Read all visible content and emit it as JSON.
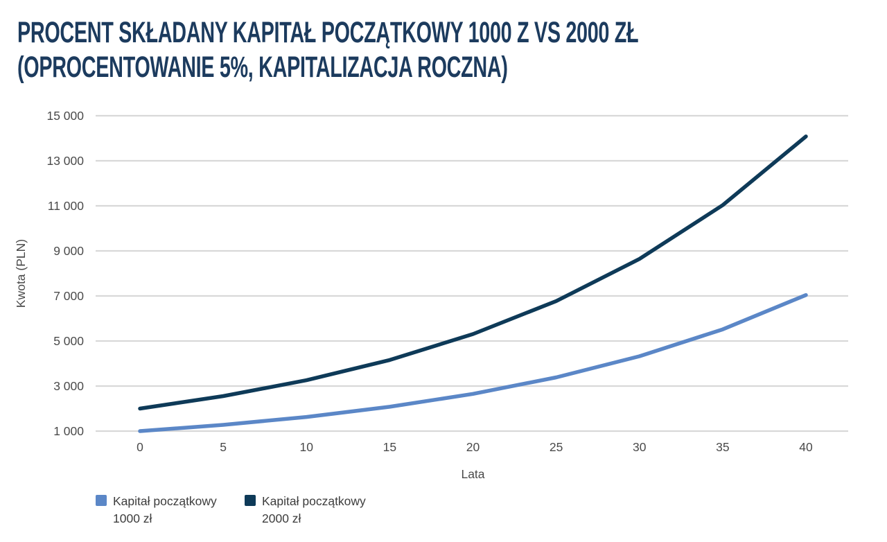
{
  "page": {
    "background": "#ffffff"
  },
  "header": {
    "title_lines": [
      "PROCENT SKŁADANY KAPITAŁ POCZĄTKOWY 1000 Z VS 2000 ZŁ",
      "(OPROCENTOWANIE 5%, KAPITALIZACJA ROCZNA)"
    ],
    "title_color": "#1c3b5e"
  },
  "chart_data": {
    "type": "line",
    "title": "Procent składany kapitał początkowy 1000 z vs 2000 zł (oprocentowanie 5%, kapitalizacja roczna)",
    "x": [
      0,
      5,
      10,
      15,
      20,
      25,
      30,
      35,
      40
    ],
    "xtick_labels": [
      "0",
      "5",
      "10",
      "15",
      "20",
      "25",
      "30",
      "35",
      "40"
    ],
    "xlabel": "Lata",
    "ylabel": "Kwota (PLN)",
    "ylim": [
      1000,
      15000
    ],
    "yticks": [
      1000,
      3000,
      5000,
      7000,
      9000,
      11000,
      13000,
      15000
    ],
    "ytick_labels": [
      "1 000",
      "3 000",
      "5 000",
      "7 000",
      "9 000",
      "11 000",
      "13 000",
      "15 000"
    ],
    "grid": true,
    "legend_position": "bottom-left",
    "series": [
      {
        "name": "Kapitał początkowy 1000 zł",
        "color": "#5b87c7",
        "values": [
          1000,
          1276,
          1629,
          2079,
          2653,
          3386,
          4322,
          5516,
          7040
        ]
      },
      {
        "name": "Kapitał początkowy 2000 zł",
        "color": "#0e3a58",
        "values": [
          2000,
          2553,
          3258,
          4158,
          5307,
          6773,
          8644,
          11032,
          14080
        ]
      }
    ]
  },
  "legend": {
    "items": [
      {
        "line1": "Kapitał początkowy",
        "line2": "1000 zł",
        "color": "#5b87c7"
      },
      {
        "line1": "Kapitał początkowy",
        "line2": "2000 zł",
        "color": "#0e3a58"
      }
    ]
  },
  "axis": {
    "text_color": "#4a4a4a",
    "grid_color": "#d8d8d8"
  }
}
